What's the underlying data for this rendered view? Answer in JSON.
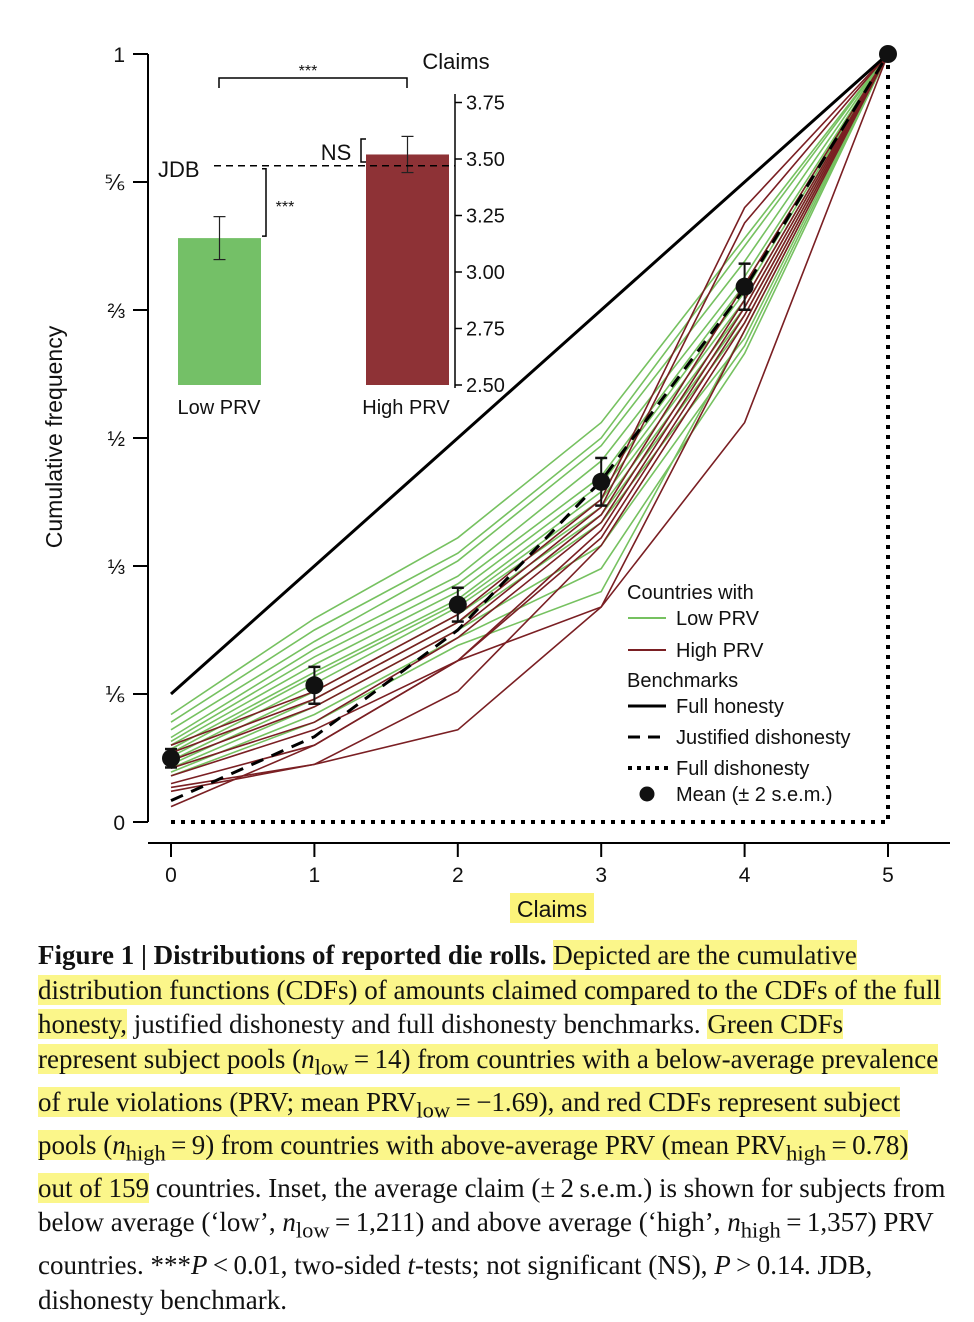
{
  "chart_data": {
    "type": "line",
    "xlabel": "Claims",
    "ylabel": "Cumulative frequency",
    "x": [
      0,
      1,
      2,
      3,
      4,
      5
    ],
    "xlim": [
      0,
      5
    ],
    "ylim": [
      0,
      1
    ],
    "y_tick_labels": [
      "0",
      "⅙",
      "⅓",
      "½",
      "⅔",
      "⅚",
      "1"
    ],
    "x_tick_labels": [
      "0",
      "1",
      "2",
      "3",
      "4",
      "5"
    ],
    "legend": {
      "position": "bottom-right",
      "group1_title": "Countries with",
      "low_label": "Low PRV",
      "high_label": "High PRV",
      "group2_title": "Benchmarks",
      "full_honesty_label": "Full honesty",
      "justified_label": "Justified dishonesty",
      "full_dishonesty_label": "Full dishonesty",
      "mean_label": "Mean (± 2 s.e.m.)"
    },
    "benchmarks": {
      "full_honesty": [
        0.1667,
        0.3333,
        0.5,
        0.6667,
        0.8333,
        1.0
      ],
      "justified_dishonesty": [
        0.0278,
        0.1111,
        0.25,
        0.4444,
        0.6944,
        1.0
      ],
      "full_dishonesty_x": [
        0,
        5
      ],
      "full_dishonesty_y": [
        0,
        1
      ]
    },
    "low_prv_series": [
      [
        0.14,
        0.265,
        0.37,
        0.52,
        0.76,
        1.0
      ],
      [
        0.13,
        0.25,
        0.35,
        0.5,
        0.75,
        1.0
      ],
      [
        0.12,
        0.235,
        0.34,
        0.49,
        0.73,
        1.0
      ],
      [
        0.11,
        0.225,
        0.32,
        0.47,
        0.71,
        1.0
      ],
      [
        0.105,
        0.215,
        0.31,
        0.45,
        0.7,
        1.0
      ],
      [
        0.1,
        0.205,
        0.3,
        0.44,
        0.69,
        1.0
      ],
      [
        0.095,
        0.195,
        0.29,
        0.43,
        0.68,
        1.0
      ],
      [
        0.09,
        0.19,
        0.285,
        0.42,
        0.67,
        1.0
      ],
      [
        0.085,
        0.18,
        0.28,
        0.41,
        0.66,
        1.0
      ],
      [
        0.08,
        0.17,
        0.27,
        0.4,
        0.65,
        1.0
      ],
      [
        0.075,
        0.16,
        0.26,
        0.39,
        0.63,
        1.0
      ],
      [
        0.07,
        0.15,
        0.25,
        0.36,
        0.62,
        1.0
      ],
      [
        0.065,
        0.14,
        0.24,
        0.33,
        0.61,
        1.0
      ],
      [
        0.06,
        0.13,
        0.23,
        0.3,
        0.64,
        1.0
      ]
    ],
    "high_prv_series": [
      [
        0.1,
        0.17,
        0.27,
        0.42,
        0.8,
        1.0
      ],
      [
        0.09,
        0.16,
        0.26,
        0.41,
        0.78,
        1.0
      ],
      [
        0.08,
        0.15,
        0.25,
        0.4,
        0.7,
        1.0
      ],
      [
        0.07,
        0.13,
        0.24,
        0.39,
        0.68,
        1.0
      ],
      [
        0.06,
        0.12,
        0.21,
        0.38,
        0.67,
        1.0
      ],
      [
        0.05,
        0.1,
        0.21,
        0.37,
        0.66,
        1.0
      ],
      [
        0.045,
        0.075,
        0.17,
        0.36,
        0.65,
        1.0
      ],
      [
        0.04,
        0.075,
        0.12,
        0.28,
        0.64,
        1.0
      ],
      [
        0.02,
        0.1,
        0.21,
        0.28,
        0.52,
        1.0
      ]
    ],
    "mean": {
      "y": [
        0.083,
        0.178,
        0.283,
        0.443,
        0.697,
        1.0
      ],
      "err": [
        0.012,
        0.024,
        0.022,
        0.031,
        0.03,
        0.0
      ]
    },
    "inset": {
      "type": "bar",
      "categories": [
        "Low PRV",
        "High PRV"
      ],
      "values": [
        3.15,
        3.52
      ],
      "err": [
        0.095,
        0.08
      ],
      "colors": [
        "#74c067",
        "#8e3236"
      ],
      "ylabel": "Claims",
      "ylim": [
        2.5,
        3.8
      ],
      "y_ticks": [
        "2.50",
        "2.75",
        "3.00",
        "3.25",
        "3.50",
        "3.75"
      ],
      "jdb_value": 3.47,
      "jdb_label": "JDB",
      "sig_between_bars": "***",
      "sig_low_vs_jdb": "***",
      "sig_high_vs_jdb": "NS"
    },
    "colors": {
      "low": "#76c160",
      "high": "#7a1f23",
      "benchmark": "#000000",
      "highlight": "#fbf68a"
    }
  },
  "caption": {
    "fig_label": "Figure 1 | Distributions of reported die rolls.",
    "hl1": "Depicted are the cumulative distribution functions (CDFs) of amounts claimed compared to the CDFs of the full honesty,",
    "plain1": " justified dishonesty and full dishonesty benchmarks. ",
    "hl2_a": "Green CDFs represent subject pools (",
    "hl2_b": "n",
    "hl2_c": "low",
    "hl2_d": " = 14) from countries with a below-average prevalence of rule violations (PRV; mean PRV",
    "hl2_e": "low",
    "hl2_f": " = −1.69), and red CDFs represent subject pools (",
    "hl2_g": "n",
    "hl2_h": "high",
    "hl2_i": " = 9) from countries with above-average PRV (mean PRV",
    "hl2_j": "high",
    "hl2_k": " = 0.78) out of 159",
    "plain2_a": " countries. Inset, the average claim (± 2 s.e.m.) is shown for subjects from below average (‘low’, ",
    "plain2_b": "n",
    "plain2_c": "low",
    "plain2_d": " = 1,211) and above average (‘high’, ",
    "plain2_e": "n",
    "plain2_f": "high",
    "plain2_g": " = 1,357) PRV countries. ***",
    "plain2_h": "P",
    "plain2_i": " < 0.01, two-sided ",
    "plain2_j": "t",
    "plain2_k": "-tests; not significant (NS), ",
    "plain2_l": "P",
    "plain2_m": " > 0.14. JDB, dishonesty benchmark."
  }
}
